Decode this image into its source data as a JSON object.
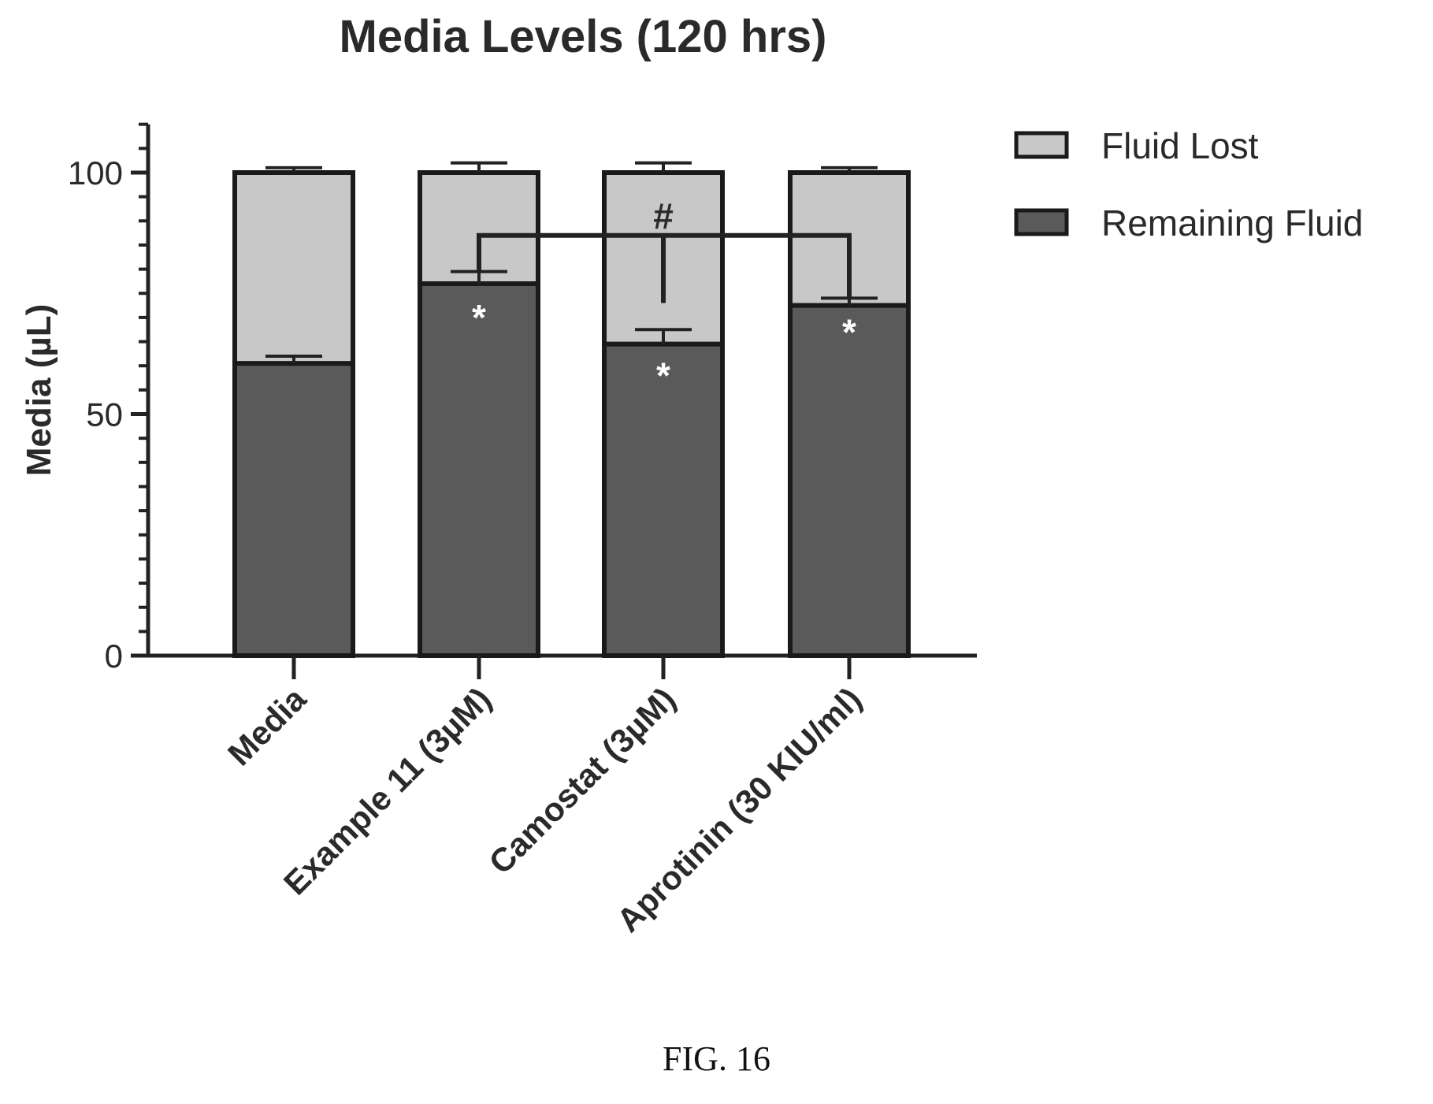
{
  "chart_data": {
    "type": "bar",
    "stacked": true,
    "title": "Media Levels (120 hrs)",
    "ylabel": "Media (µL)",
    "xlabel": "",
    "ylim": [
      0,
      110
    ],
    "yticks": [
      0,
      50,
      100
    ],
    "categories": [
      "Media",
      "Example 11 (3µM)",
      "Camostat (3µM)",
      "Aprotinin (30 KIU/ml)"
    ],
    "series": [
      {
        "name": "Remaining Fluid",
        "values": [
          60.5,
          77,
          64.5,
          72.5
        ],
        "errors": [
          1.5,
          2.5,
          3.0,
          1.5
        ],
        "color": "#5a5a5a"
      },
      {
        "name": "Fluid Lost",
        "values": [
          39.5,
          23,
          35.5,
          27.5
        ],
        "errors": [
          1.0,
          2.0,
          2.0,
          1.0
        ],
        "color": "#c8c8c8"
      }
    ],
    "legend": "right",
    "annotations": [
      {
        "text": "*",
        "category": "Example 11 (3µM)",
        "y": 70
      },
      {
        "text": "*",
        "category": "Camostat (3µM)",
        "y": 58
      },
      {
        "text": "*",
        "category": "Aprotinin (30 KIU/ml)",
        "y": 67
      },
      {
        "text": "#",
        "category": "Camostat (3µM)",
        "y": 91
      }
    ],
    "significance_bracket": {
      "from": "Example 11 (3µM)",
      "to": "Aprotinin (30 KIU/ml)",
      "y": 87,
      "marker": "#"
    },
    "grid": false
  },
  "caption": "FIG. 16"
}
